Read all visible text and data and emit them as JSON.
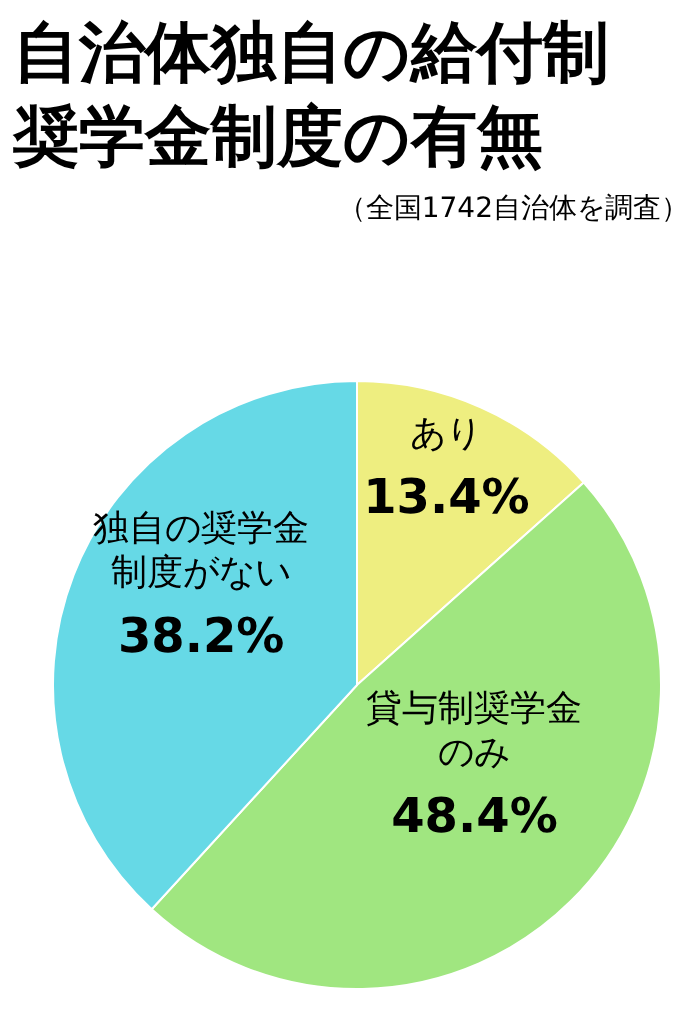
{
  "chart_data": {
    "type": "pie",
    "title": "自治体独自の給付制奨学金制度の有無",
    "subtitle": "（全国1742自治体を調査）",
    "categories": [
      "あり",
      "貸与制奨学金のみ",
      "独自の奨学金制度がない"
    ],
    "values": [
      13.4,
      48.4,
      38.2
    ],
    "colors": [
      "#eeee80",
      "#a0e680",
      "#66d9e6"
    ],
    "value_labels": [
      "13.4%",
      "48.4%",
      "38.2%"
    ]
  }
}
